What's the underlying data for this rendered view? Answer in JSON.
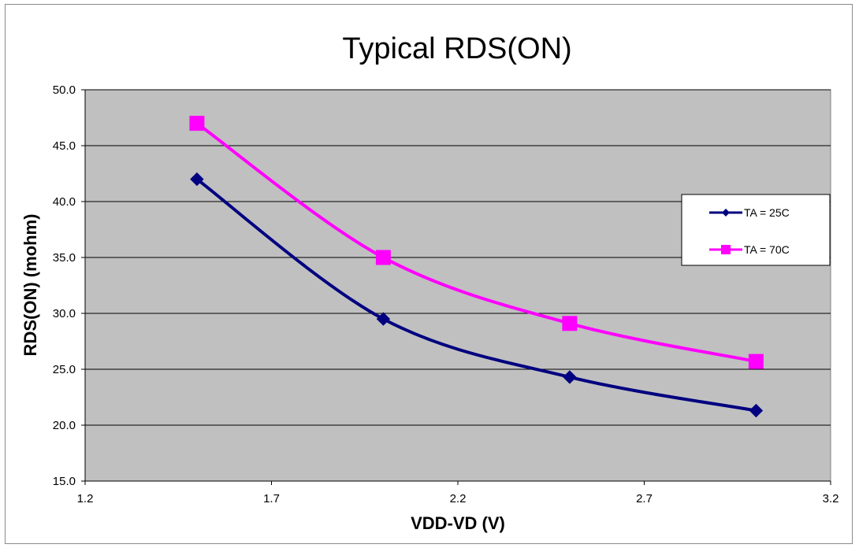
{
  "chart_data": {
    "type": "line",
    "title": "Typical RDS(ON)",
    "xlabel": "VDD-VD (V)",
    "ylabel": "RDS(ON) (mohm)",
    "xlim": [
      1.2,
      3.2
    ],
    "ylim": [
      15.0,
      50.0
    ],
    "x_ticks": [
      "1.2",
      "1.7",
      "2.2",
      "2.7",
      "3.2"
    ],
    "y_ticks": [
      "15.0",
      "20.0",
      "25.0",
      "30.0",
      "35.0",
      "40.0",
      "45.0",
      "50.0"
    ],
    "grid": "horizontal",
    "legend_position": "right",
    "plot_background": "#c0c0c0",
    "series": [
      {
        "name": "TA = 25C",
        "color": "#000080",
        "marker": "diamond",
        "x": [
          1.5,
          2.0,
          2.5,
          3.0
        ],
        "y": [
          42.0,
          29.5,
          24.3,
          21.3
        ]
      },
      {
        "name": "TA = 70C",
        "color": "#ff00ff",
        "marker": "square",
        "x": [
          1.5,
          2.0,
          2.5,
          3.0
        ],
        "y": [
          47.0,
          35.0,
          29.1,
          25.7
        ]
      }
    ]
  }
}
